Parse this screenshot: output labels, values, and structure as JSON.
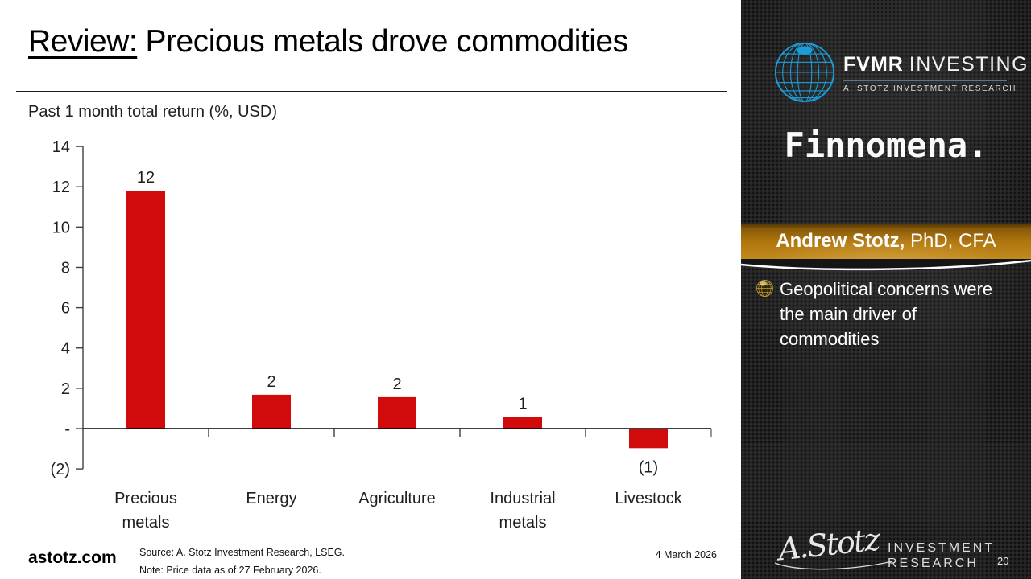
{
  "title": {
    "emph": "Review:",
    "rest": " Precious metals drove commodities"
  },
  "chart_data": {
    "type": "bar",
    "title": "Past 1 month total return (%, USD)",
    "categories": [
      "Precious metals",
      "Energy",
      "Agriculture",
      "Industrial metals",
      "Livestock"
    ],
    "values": [
      11.8,
      1.68,
      1.56,
      0.58,
      -0.97
    ],
    "bar_labels": [
      "12",
      "2",
      "2",
      "1",
      "(1)"
    ],
    "ylim": [
      -2,
      14
    ],
    "ytick_step": 2,
    "ytick_labels": [
      "(2)",
      "-",
      "2",
      "4",
      "6",
      "8",
      "10",
      "12",
      "14"
    ],
    "grid": false,
    "legend": "none",
    "bar_color": "#d10b0c",
    "axis_color": "#3f3f3f",
    "zero_line_color": "#000000",
    "end_tick_color": "#999999"
  },
  "footer": {
    "site": "astotz.com",
    "source_line1": "Source: A. Stotz Investment Research, LSEG.",
    "source_line2": "Note: Price data as of 27 February 2026.",
    "date": "4 March 2026"
  },
  "sidebar": {
    "fvmr": {
      "brand_bold": "FVMR",
      "brand_light": "INVESTING",
      "subtitle": "A. STOTZ INVESTMENT RESEARCH",
      "globe_color": "#1d9bd7"
    },
    "finnomena": "Finnomena.",
    "banner": {
      "name_bold": "Andrew Stotz,",
      "name_rest": " PhD, CFA",
      "gold_color": "#b1760e"
    },
    "bullet": "Geopolitical concerns were the main driver of commodities",
    "signature": "A.Stotz",
    "inv_line1": "INVESTMENT",
    "inv_line2": "RESEARCH",
    "page_number": "20"
  }
}
